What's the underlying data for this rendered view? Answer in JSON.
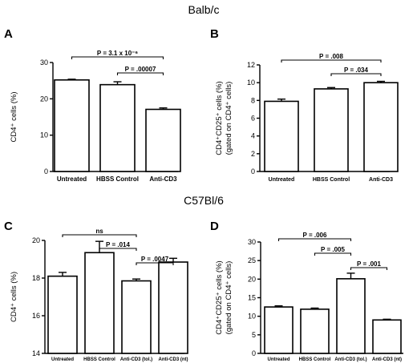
{
  "headings": {
    "top": "Balb/c",
    "bottom": "C57Bl/6"
  },
  "chart_data": [
    {
      "panel": "A",
      "type": "bar",
      "categories": [
        "Untreated",
        "HBSS Control",
        "Anti-CD3"
      ],
      "values": [
        25.2,
        23.9,
        17.1
      ],
      "errors": [
        0.2,
        0.8,
        0.4
      ],
      "ylabel_lines": [
        "CD4⁺ cells (%)"
      ],
      "ylim": [
        0,
        30
      ],
      "yticks": [
        0,
        10,
        20,
        30
      ],
      "annotations": [
        {
          "from": 0,
          "to": 2,
          "label": "P = 3.1 x 10⁻⁶"
        },
        {
          "from": 1,
          "to": 2,
          "label": "P = .00007"
        }
      ]
    },
    {
      "panel": "B",
      "type": "bar",
      "categories": [
        "Untreated",
        "HBSS Control",
        "Anti-CD3"
      ],
      "values": [
        7.9,
        9.3,
        10.0
      ],
      "errors": [
        0.25,
        0.15,
        0.15
      ],
      "ylabel_lines": [
        "CD4⁺CD25⁺ cells (%)",
        "(gated on CD4⁺ cells)"
      ],
      "ylim": [
        0,
        12
      ],
      "yticks": [
        0,
        2,
        4,
        6,
        8,
        10,
        12
      ],
      "annotations": [
        {
          "from": 0,
          "to": 2,
          "label": "P = .008"
        },
        {
          "from": 1,
          "to": 2,
          "label": "P = .034"
        }
      ]
    },
    {
      "panel": "C",
      "type": "bar",
      "categories": [
        "Untreated",
        "HBSS Control",
        "Anti-CD3 (tol.)",
        "Anti-CD3 (nt)"
      ],
      "values": [
        18.1,
        19.35,
        17.85,
        18.85
      ],
      "errors": [
        0.2,
        0.6,
        0.1,
        0.2
      ],
      "ylabel_lines": [
        "CD4⁺ cells (%)"
      ],
      "ylim": [
        14,
        20
      ],
      "yticks": [
        14,
        16,
        18,
        20
      ],
      "annotations": [
        {
          "from": 0,
          "to": 2,
          "label": "ns"
        },
        {
          "from": 1,
          "to": 2,
          "label": "P = .014"
        },
        {
          "from": 2,
          "to": 3,
          "label": "P = .0047"
        }
      ]
    },
    {
      "panel": "D",
      "type": "bar",
      "categories": [
        "Untreated",
        "HBSS Control",
        "Anti-CD3 (tol.)",
        "Anti-CD3 (nt)"
      ],
      "values": [
        12.5,
        11.9,
        20.1,
        9.0
      ],
      "errors": [
        0.3,
        0.3,
        1.5,
        0.2
      ],
      "ylabel_lines": [
        "CD4⁺CD25⁺ cells (%)",
        "(gated on CD4⁺ cells)"
      ],
      "ylim": [
        0,
        30
      ],
      "yticks": [
        0,
        5,
        10,
        15,
        20,
        25,
        30
      ],
      "annotations": [
        {
          "from": 0,
          "to": 2,
          "label": "P = .006"
        },
        {
          "from": 1,
          "to": 2,
          "label": "P = .005"
        },
        {
          "from": 2,
          "to": 3,
          "label": "P = .001"
        }
      ]
    }
  ]
}
